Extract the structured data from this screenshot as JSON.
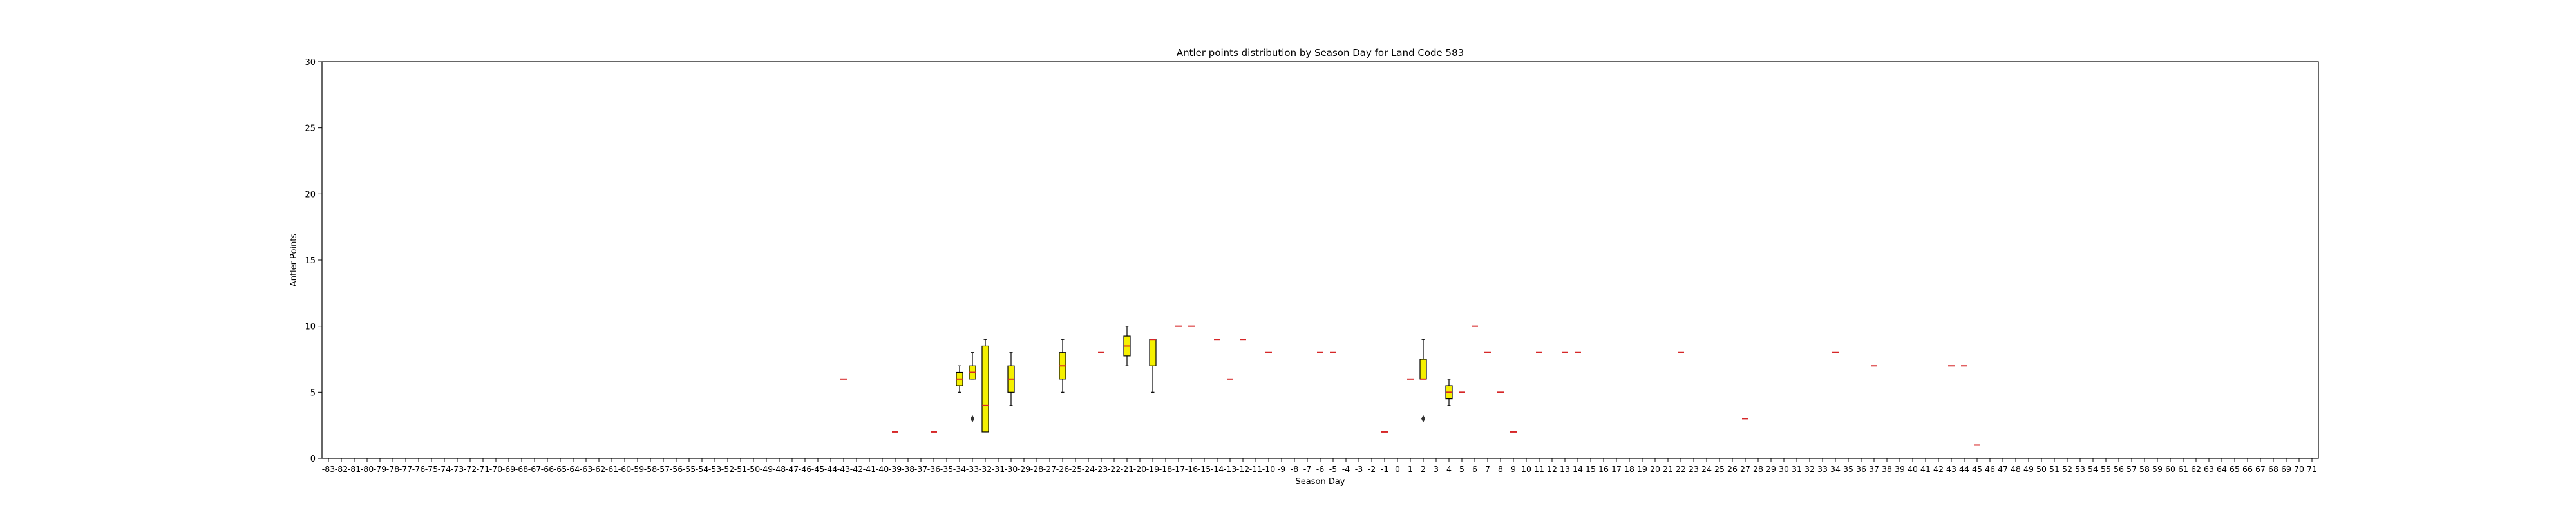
{
  "chart_data": {
    "type": "box",
    "title": "Antler points distribution by Season Day for Land Code 583",
    "xlabel": "Season Day",
    "ylabel": "Antler Points",
    "ylim": [
      0,
      30
    ],
    "yticks": [
      0,
      5,
      10,
      15,
      20,
      25,
      30
    ],
    "grid": false,
    "x_categories": [
      "-83",
      "-82",
      "-81",
      "-80",
      "-79",
      "-78",
      "-77",
      "-76",
      "-75",
      "-74",
      "-73",
      "-72",
      "-71",
      "-70",
      "-69",
      "-68",
      "-67",
      "-66",
      "-65",
      "-64",
      "-63",
      "-62",
      "-61",
      "-60",
      "-59",
      "-58",
      "-57",
      "-56",
      "-55",
      "-54",
      "-53",
      "-52",
      "-51",
      "-50",
      "-49",
      "-48",
      "-47",
      "-46",
      "-45",
      "-44",
      "-43",
      "-42",
      "-41",
      "-40",
      "-39",
      "-38",
      "-37",
      "-36",
      "-35",
      "-34",
      "-33",
      "-32",
      "-31",
      "-30",
      "-29",
      "-28",
      "-27",
      "-26",
      "-25",
      "-24",
      "-23",
      "-22",
      "-21",
      "-20",
      "-19",
      "-18",
      "-17",
      "-16",
      "-15",
      "-14",
      "-13",
      "-12",
      "-11",
      "-10",
      "-9",
      "-8",
      "-7",
      "-6",
      "-5",
      "-4",
      "-3",
      "-2",
      "-1",
      "0",
      "1",
      "2",
      "3",
      "4",
      "5",
      "6",
      "7",
      "8",
      "9",
      "10",
      "11",
      "12",
      "13",
      "14",
      "15",
      "16",
      "17",
      "18",
      "19",
      "20",
      "21",
      "22",
      "23",
      "24",
      "25",
      "26",
      "27",
      "28",
      "29",
      "30",
      "31",
      "32",
      "33",
      "34",
      "35",
      "36",
      "37",
      "38",
      "39",
      "40",
      "41",
      "42",
      "43",
      "44",
      "45",
      "46",
      "47",
      "48",
      "49",
      "50",
      "51",
      "52",
      "53",
      "54",
      "55",
      "56",
      "57",
      "58",
      "59",
      "60",
      "61",
      "62",
      "63",
      "64",
      "65",
      "66",
      "67",
      "68",
      "69",
      "70",
      "71"
    ],
    "boxes": [
      {
        "x": "-43",
        "whislo": 6,
        "q1": 6,
        "med": 6,
        "q3": 6,
        "whishi": 6,
        "fliers": []
      },
      {
        "x": "-39",
        "whislo": 2,
        "q1": 2,
        "med": 2,
        "q3": 2,
        "whishi": 2,
        "fliers": []
      },
      {
        "x": "-36",
        "whislo": 2,
        "q1": 2,
        "med": 2,
        "q3": 2,
        "whishi": 2,
        "fliers": []
      },
      {
        "x": "-34",
        "whislo": 5,
        "q1": 5.5,
        "med": 6,
        "q3": 6.5,
        "whishi": 7,
        "fliers": []
      },
      {
        "x": "-33",
        "whislo": 6,
        "q1": 6,
        "med": 6.5,
        "q3": 7,
        "whishi": 8,
        "fliers": [
          3
        ]
      },
      {
        "x": "-32",
        "whislo": 2,
        "q1": 2,
        "med": 4,
        "q3": 8.5,
        "whishi": 9,
        "fliers": []
      },
      {
        "x": "-30",
        "whislo": 4,
        "q1": 5,
        "med": 6,
        "q3": 7,
        "whishi": 8,
        "fliers": []
      },
      {
        "x": "-26",
        "whislo": 5,
        "q1": 6,
        "med": 7,
        "q3": 8,
        "whishi": 9,
        "fliers": []
      },
      {
        "x": "-23",
        "whislo": 8,
        "q1": 8,
        "med": 8,
        "q3": 8,
        "whishi": 8,
        "fliers": []
      },
      {
        "x": "-21",
        "whislo": 7,
        "q1": 7.75,
        "med": 8.5,
        "q3": 9.25,
        "whishi": 10,
        "fliers": []
      },
      {
        "x": "-19",
        "whislo": 5,
        "q1": 7,
        "med": 9,
        "q3": 9,
        "whishi": 9,
        "fliers": []
      },
      {
        "x": "-17",
        "whislo": 10,
        "q1": 10,
        "med": 10,
        "q3": 10,
        "whishi": 10,
        "fliers": []
      },
      {
        "x": "-16",
        "whislo": 10,
        "q1": 10,
        "med": 10,
        "q3": 10,
        "whishi": 10,
        "fliers": []
      },
      {
        "x": "-14",
        "whislo": 9,
        "q1": 9,
        "med": 9,
        "q3": 9,
        "whishi": 9,
        "fliers": []
      },
      {
        "x": "-13",
        "whislo": 6,
        "q1": 6,
        "med": 6,
        "q3": 6,
        "whishi": 6,
        "fliers": []
      },
      {
        "x": "-12",
        "whislo": 9,
        "q1": 9,
        "med": 9,
        "q3": 9,
        "whishi": 9,
        "fliers": []
      },
      {
        "x": "-10",
        "whislo": 8,
        "q1": 8,
        "med": 8,
        "q3": 8,
        "whishi": 8,
        "fliers": []
      },
      {
        "x": "-6",
        "whislo": 8,
        "q1": 8,
        "med": 8,
        "q3": 8,
        "whishi": 8,
        "fliers": []
      },
      {
        "x": "-5",
        "whislo": 8,
        "q1": 8,
        "med": 8,
        "q3": 8,
        "whishi": 8,
        "fliers": []
      },
      {
        "x": "-1",
        "whislo": 2,
        "q1": 2,
        "med": 2,
        "q3": 2,
        "whishi": 2,
        "fliers": []
      },
      {
        "x": "1",
        "whislo": 6,
        "q1": 6,
        "med": 6,
        "q3": 6,
        "whishi": 6,
        "fliers": []
      },
      {
        "x": "2",
        "whislo": 6,
        "q1": 6,
        "med": 6,
        "q3": 7.5,
        "whishi": 9,
        "fliers": [
          3
        ]
      },
      {
        "x": "4",
        "whislo": 4,
        "q1": 4.5,
        "med": 5,
        "q3": 5.5,
        "whishi": 6,
        "fliers": []
      },
      {
        "x": "5",
        "whislo": 5,
        "q1": 5,
        "med": 5,
        "q3": 5,
        "whishi": 5,
        "fliers": []
      },
      {
        "x": "6",
        "whislo": 10,
        "q1": 10,
        "med": 10,
        "q3": 10,
        "whishi": 10,
        "fliers": []
      },
      {
        "x": "7",
        "whislo": 8,
        "q1": 8,
        "med": 8,
        "q3": 8,
        "whishi": 8,
        "fliers": []
      },
      {
        "x": "8",
        "whislo": 5,
        "q1": 5,
        "med": 5,
        "q3": 5,
        "whishi": 5,
        "fliers": []
      },
      {
        "x": "9",
        "whislo": 2,
        "q1": 2,
        "med": 2,
        "q3": 2,
        "whishi": 2,
        "fliers": []
      },
      {
        "x": "11",
        "whislo": 8,
        "q1": 8,
        "med": 8,
        "q3": 8,
        "whishi": 8,
        "fliers": []
      },
      {
        "x": "13",
        "whislo": 8,
        "q1": 8,
        "med": 8,
        "q3": 8,
        "whishi": 8,
        "fliers": []
      },
      {
        "x": "14",
        "whislo": 8,
        "q1": 8,
        "med": 8,
        "q3": 8,
        "whishi": 8,
        "fliers": []
      },
      {
        "x": "22",
        "whislo": 8,
        "q1": 8,
        "med": 8,
        "q3": 8,
        "whishi": 8,
        "fliers": []
      },
      {
        "x": "27",
        "whislo": 3,
        "q1": 3,
        "med": 3,
        "q3": 3,
        "whishi": 3,
        "fliers": []
      },
      {
        "x": "34",
        "whislo": 8,
        "q1": 8,
        "med": 8,
        "q3": 8,
        "whishi": 8,
        "fliers": []
      },
      {
        "x": "37",
        "whislo": 7,
        "q1": 7,
        "med": 7,
        "q3": 7,
        "whishi": 7,
        "fliers": []
      },
      {
        "x": "43",
        "whislo": 7,
        "q1": 7,
        "med": 7,
        "q3": 7,
        "whishi": 7,
        "fliers": []
      },
      {
        "x": "44",
        "whislo": 7,
        "q1": 7,
        "med": 7,
        "q3": 7,
        "whishi": 7,
        "fliers": []
      },
      {
        "x": "45",
        "whislo": 1,
        "q1": 1,
        "med": 1,
        "q3": 1,
        "whishi": 1,
        "fliers": []
      }
    ],
    "colors": {
      "box_fill": "#f5f000",
      "box_edge": "#000000",
      "median": "#d62728",
      "axes": "#000000",
      "background": "#ffffff"
    }
  }
}
